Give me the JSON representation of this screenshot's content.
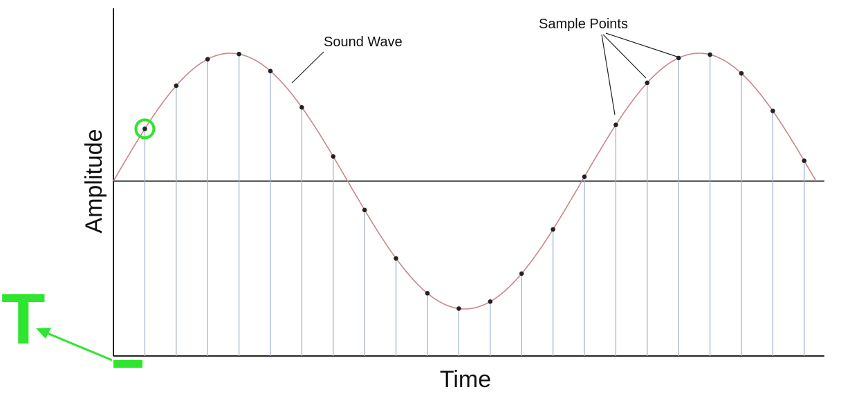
{
  "annotations": {
    "sound_wave_label": "Sound Wave",
    "sample_points_label": "Sample Points",
    "period_symbol": "T"
  },
  "axes": {
    "x_label": "Time",
    "y_label": "Amplitude"
  },
  "waveform": {
    "cycles": 1.5,
    "curve_color": "#c9868a",
    "stem_color": "#9fb6cf",
    "point_color": "#222222",
    "baseline_color": "#222222",
    "highlight_color": "#2ee62e"
  },
  "samples": {
    "count": 23,
    "highlighted_index": 1
  }
}
